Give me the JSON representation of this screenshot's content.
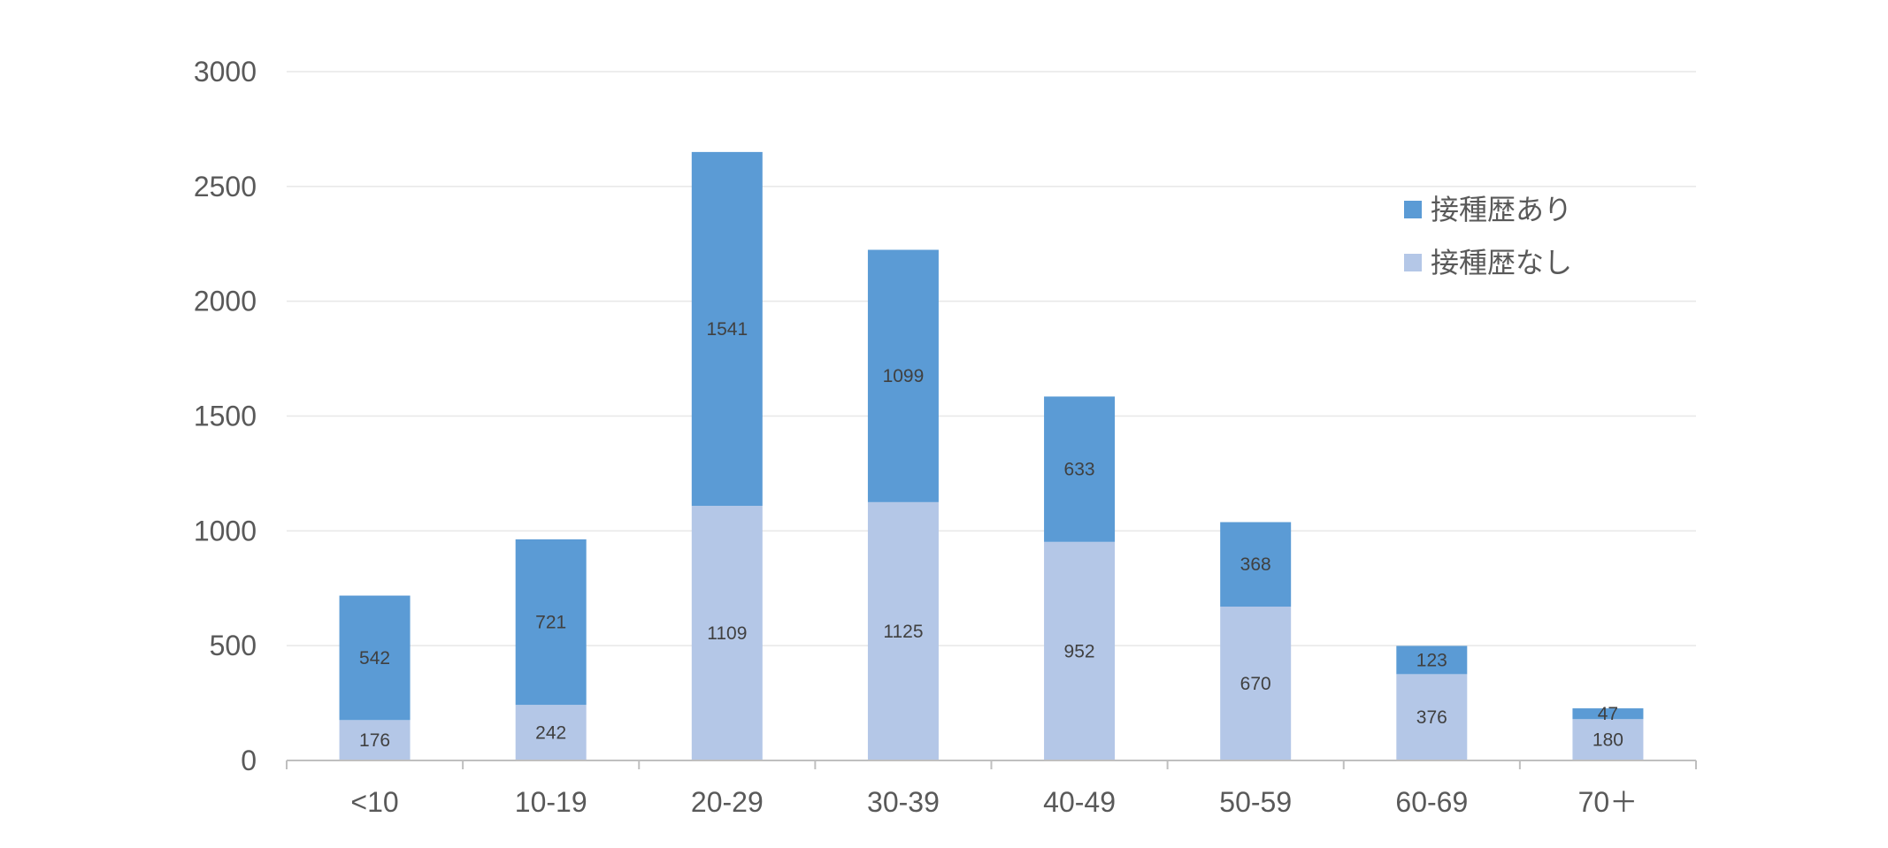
{
  "chart_data": {
    "type": "bar",
    "stacked": true,
    "categories": [
      "<10",
      "10-19",
      "20-29",
      "30-39",
      "40-49",
      "50-59",
      "60-69",
      "70＋"
    ],
    "series": [
      {
        "name": "接種歴なし",
        "color": "#b4c7e7",
        "values": [
          176,
          242,
          1109,
          1125,
          952,
          670,
          376,
          180
        ]
      },
      {
        "name": "接種歴あり",
        "color": "#5b9bd5",
        "values": [
          542,
          721,
          1541,
          1099,
          633,
          368,
          123,
          47
        ]
      }
    ],
    "ylim": [
      0,
      3000
    ],
    "yticks": [
      0,
      500,
      1000,
      1500,
      2000,
      2500,
      3000
    ],
    "legend_order": [
      "接種歴あり",
      "接種歴なし"
    ],
    "legend_position": "top-right",
    "grid": true,
    "gridline_color": "#e7e7e7",
    "axis_color": "#bfbfbf"
  }
}
